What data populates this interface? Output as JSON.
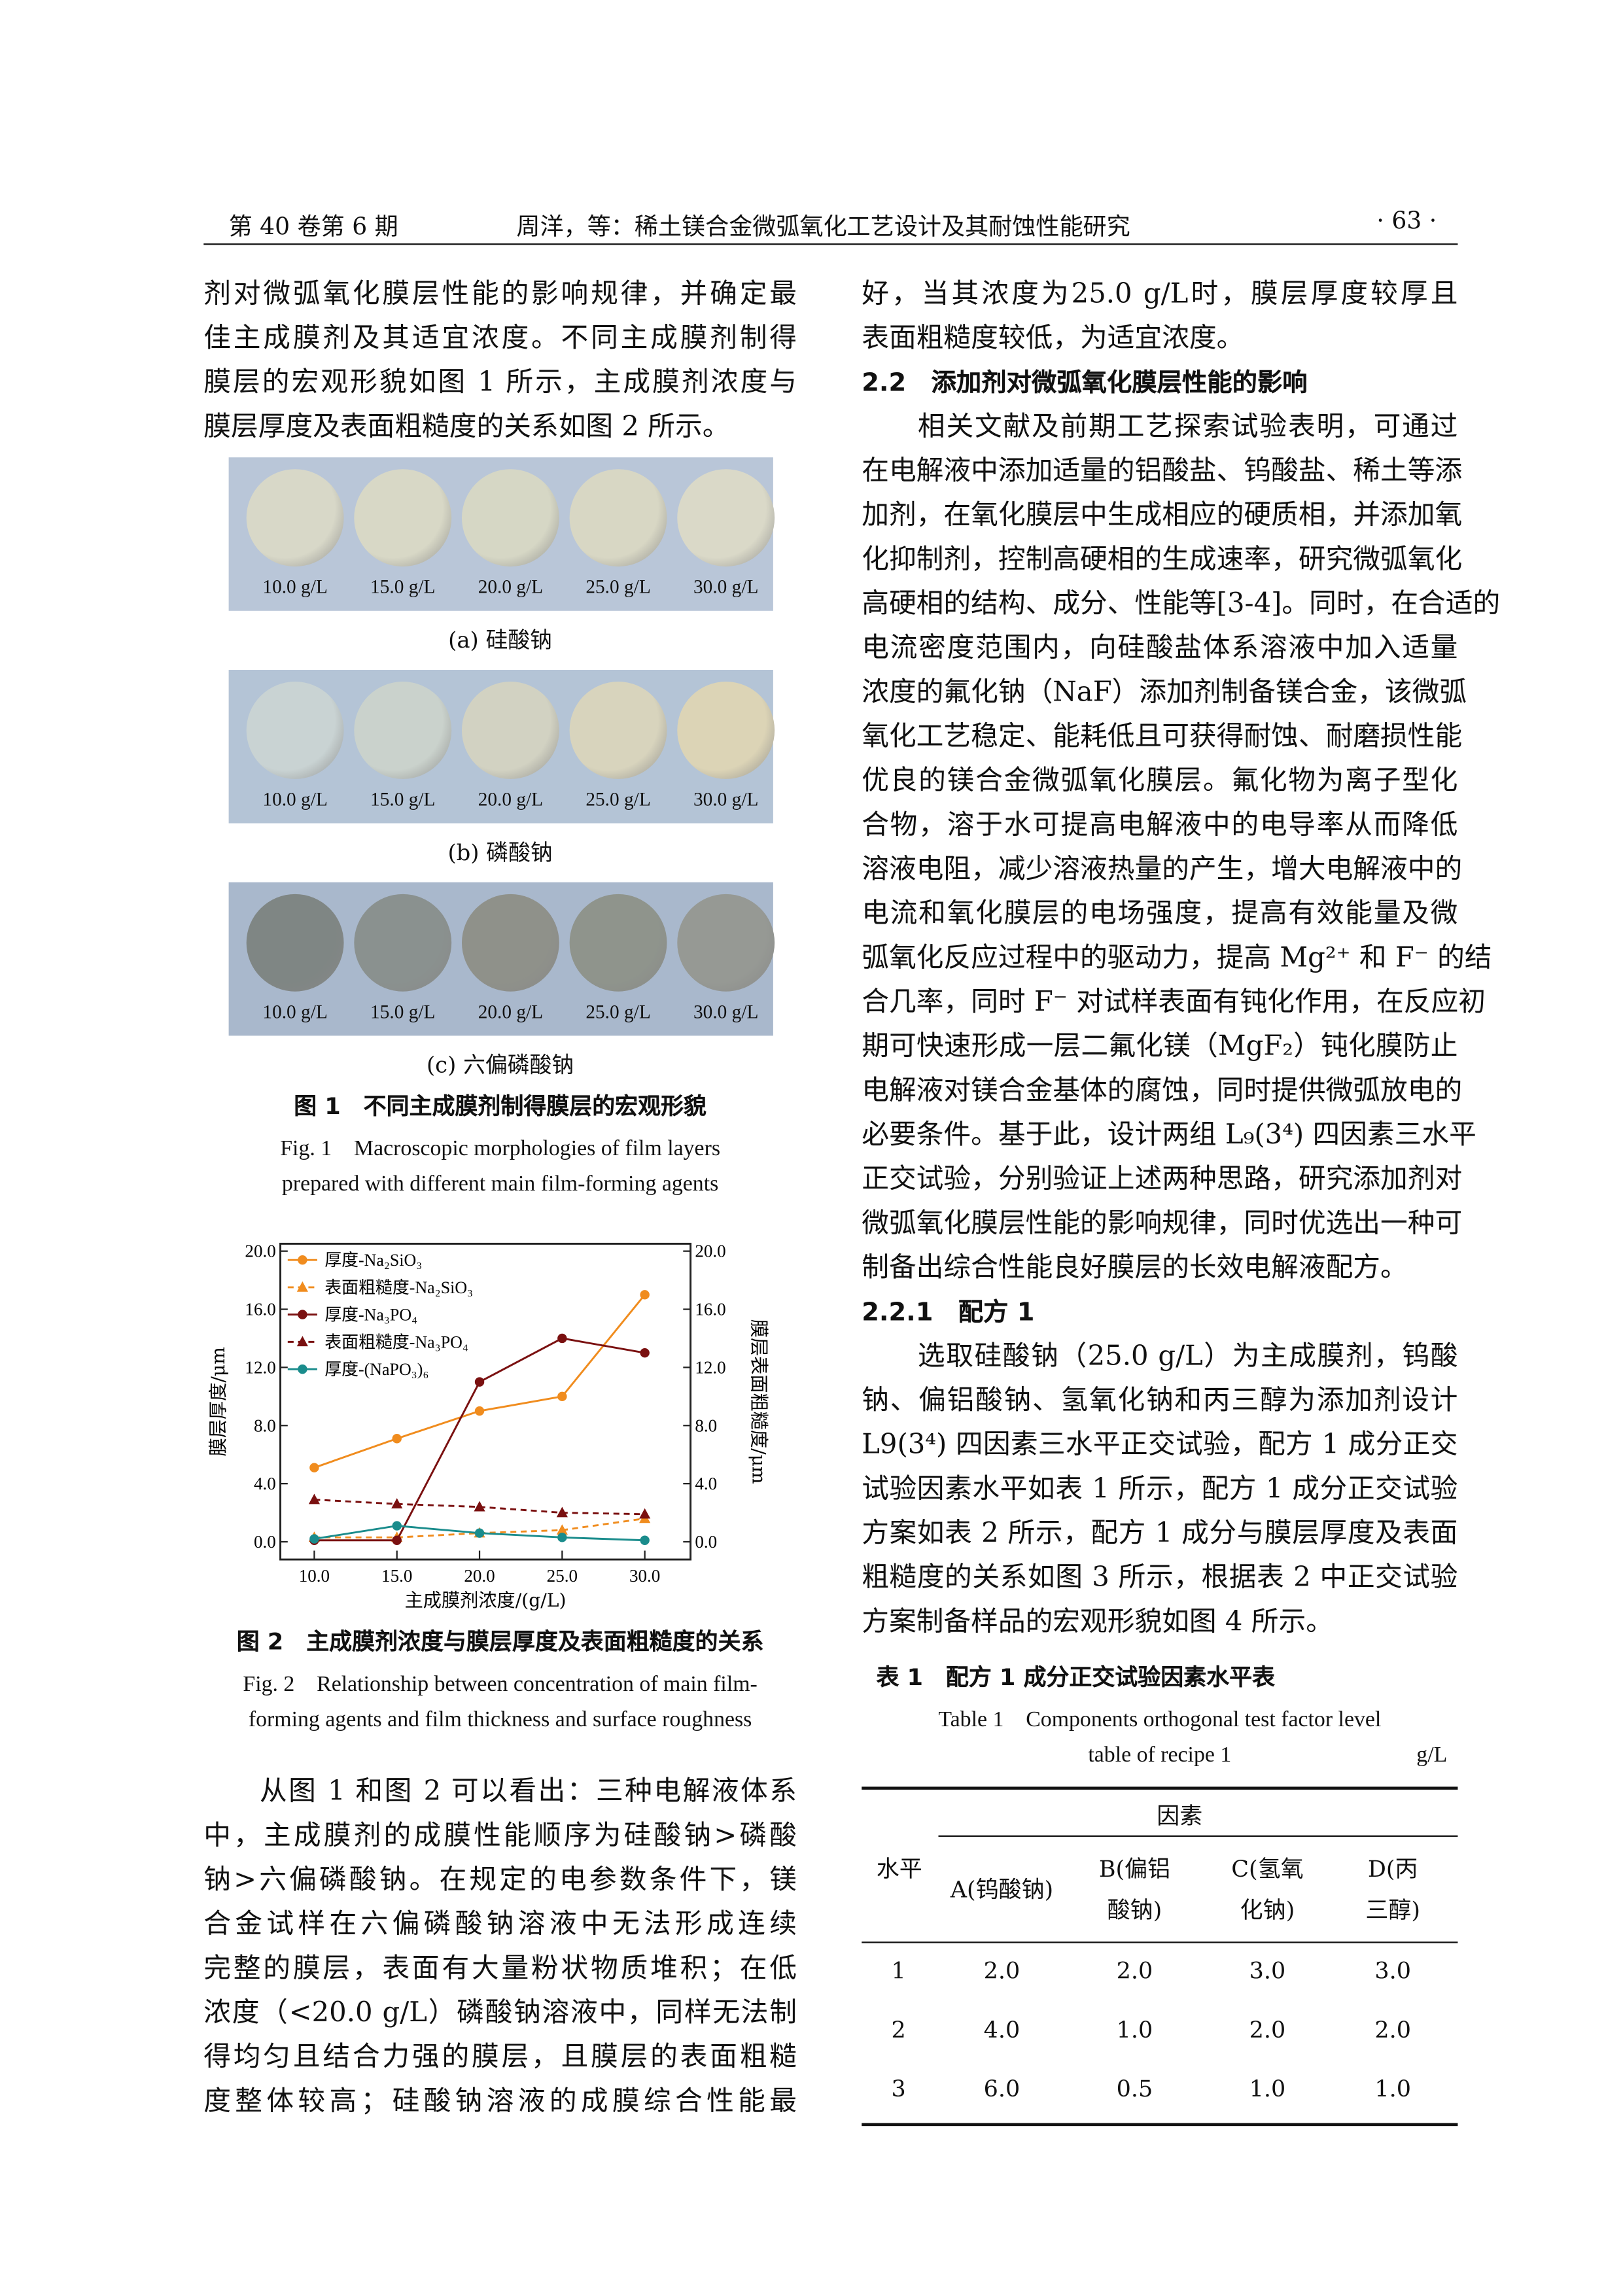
{
  "header": {
    "left": "第 40 卷第 6 期",
    "center": "周洋，等：稀土镁合金微弧氧化工艺设计及其耐蚀性能研究",
    "right": "· 63 ·"
  },
  "left_top": [
    "剂对微弧氧化膜层性能的影响规律，并确定最",
    "佳主成膜剂及其适宜浓度。不同主成膜剂制得",
    "膜层的宏观形貌如图 1 所示，主成膜剂浓度与",
    "膜层厚度及表面粗糙度的关系如图 2 所示。"
  ],
  "figure1": {
    "panels": [
      {
        "labels": [
          "10.0 g/L",
          "15.0 g/L",
          "20.0 g/L",
          "25.0 g/L",
          "30.0 g/L"
        ],
        "caption": "(a) 硅酸钠"
      },
      {
        "labels": [
          "10.0 g/L",
          "15.0 g/L",
          "20.0 g/L",
          "25.0 g/L",
          "30.0 g/L"
        ],
        "caption": "(b) 磷酸钠"
      },
      {
        "labels": [
          "10.0 g/L",
          "15.0 g/L",
          "20.0 g/L",
          "25.0 g/L",
          "30.0 g/L"
        ],
        "caption": "(c) 六偏磷酸钠"
      }
    ],
    "caption_cn": "图 1　不同主成膜剂制得膜层的宏观形貌",
    "caption_en1": "Fig. 1　Macroscopic morphologies of film layers",
    "caption_en2": "prepared with different main film-forming agents"
  },
  "chart_data": {
    "type": "line",
    "x": [
      10.0,
      15.0,
      20.0,
      25.0,
      30.0
    ],
    "xticks": [
      "10.0",
      "15.0",
      "20.0",
      "25.0",
      "30.0"
    ],
    "yticks": [
      "0.0",
      "4.0",
      "8.0",
      "12.0",
      "16.0",
      "20.0"
    ],
    "ylim": [
      0,
      20
    ],
    "xlabel": "主成膜剂浓度/(g/L)",
    "ylabel": "膜层厚度/μm",
    "y2label": "膜层表面粗糙度/μm",
    "legend_position": "top-left",
    "series": [
      {
        "name": "厚度-Na₂SiO₃",
        "color": "#f08c1e",
        "style": "solid",
        "marker": "circle",
        "values": [
          5.1,
          7.1,
          9.0,
          10.0,
          17.0
        ]
      },
      {
        "name": "表面粗糙度-Na₂SiO₃",
        "color": "#f08c1e",
        "style": "dashed",
        "marker": "triangle",
        "values": [
          0.3,
          0.3,
          0.6,
          0.8,
          1.6
        ]
      },
      {
        "name": "厚度-Na₃PO₄",
        "color": "#7a1010",
        "style": "solid",
        "marker": "circle",
        "values": [
          0.1,
          0.1,
          11.0,
          14.0,
          13.0
        ]
      },
      {
        "name": "表面粗糙度-Na₃PO₄",
        "color": "#7a1010",
        "style": "dashed",
        "marker": "triangle",
        "values": [
          2.9,
          2.6,
          2.4,
          2.0,
          1.9
        ]
      },
      {
        "name": "厚度-(NaPO₃)₆",
        "color": "#1a8c8c",
        "style": "solid",
        "marker": "circle",
        "values": [
          0.2,
          1.1,
          0.6,
          0.3,
          0.1
        ]
      }
    ]
  },
  "figure2": {
    "caption_cn": "图 2　主成膜剂浓度与膜层厚度及表面粗糙度的关系",
    "caption_en1": "Fig. 2　Relationship between concentration of main film-",
    "caption_en2": "forming agents and film thickness and surface roughness"
  },
  "left_bottom": [
    "从图 1 和图 2 可以看出：三种电解液体系",
    "中，主成膜剂的成膜性能顺序为硅酸钠>磷酸",
    "钠>六偏磷酸钠。在规定的电参数条件下，镁",
    "合金试样在六偏磷酸钠溶液中无法形成连续",
    "完整的膜层，表面有大量粉状物质堆积；在低",
    "浓度（<20.0 g/L）磷酸钠溶液中，同样无法制",
    "得均匀且结合力强的膜层，且膜层的表面粗糙",
    "度整体较高；硅酸钠溶液的成膜综合性能最"
  ],
  "right": [
    "好，当其浓度为25.0 g/L时，膜层厚度较厚且",
    "表面粗糙度较低，为适宜浓度。",
    "2.2　添加剂对微弧氧化膜层性能的影响",
    "相关文献及前期工艺探索试验表明，可通过",
    "在电解液中添加适量的铝酸盐、钨酸盐、稀土等添",
    "加剂，在氧化膜层中生成相应的硬质相，并添加氧",
    "化抑制剂，控制高硬相的生成速率，研究微弧氧化",
    "高硬相的结构、成分、性能等[3-4]。同时，在合适的",
    "电流密度范围内，向硅酸盐体系溶液中加入适量",
    "浓度的氟化钠（NaF）添加剂制备镁合金，该微弧",
    "氧化工艺稳定、能耗低且可获得耐蚀、耐磨损性能",
    "优良的镁合金微弧氧化膜层。氟化物为离子型化",
    "合物，溶于水可提高电解液中的电导率从而降低",
    "溶液电阻，减少溶液热量的产生，增大电解液中的",
    "电流和氧化膜层的电场强度，提高有效能量及微",
    "弧氧化反应过程中的驱动力，提高 Mg²⁺ 和 F⁻ 的结",
    "合几率，同时 F⁻ 对试样表面有钝化作用，在反应初",
    "期可快速形成一层二氟化镁（MgF₂）钝化膜防止",
    "电解液对镁合金基体的腐蚀，同时提供微弧放电的",
    "必要条件。基于此，设计两组 L₉(3⁴) 四因素三水平",
    "正交试验，分别验证上述两种思路，研究添加剂对",
    "微弧氧化膜层性能的影响规律，同时优选出一种可",
    "制备出综合性能良好膜层的长效电解液配方。",
    "2.2.1　配方 1",
    "选取硅酸钠（25.0 g/L）为主成膜剂，钨酸",
    "钠、偏铝酸钠、氢氧化钠和丙三醇为添加剂设计",
    "L9(3⁴) 四因素三水平正交试验，配方 1 成分正交",
    "试验因素水平如表 1 所示，配方 1 成分正交试验",
    "方案如表 2 所示，配方 1 成分与膜层厚度及表面",
    "粗糙度的关系如图 3 所示，根据表 2 中正交试验",
    "方案制备样品的宏观形貌如图 4 所示。"
  ],
  "table1": {
    "title_cn": "表 1　配方 1 成分正交试验因素水平表",
    "title_en1": "Table 1　Components orthogonal test factor level",
    "title_en2": "table of recipe 1",
    "unit": "g/L",
    "group_header": "因素",
    "level_header": "水平",
    "columns": [
      [
        "A(钨酸钠)",
        ""
      ],
      [
        "B(偏铝",
        "酸钠)"
      ],
      [
        "C(氢氧",
        "化钠)"
      ],
      [
        "D(丙",
        "三醇)"
      ]
    ],
    "rows": [
      [
        "1",
        "2.0",
        "2.0",
        "3.0",
        "3.0"
      ],
      [
        "2",
        "4.0",
        "1.0",
        "2.0",
        "2.0"
      ],
      [
        "3",
        "6.0",
        "0.5",
        "1.0",
        "1.0"
      ]
    ]
  }
}
